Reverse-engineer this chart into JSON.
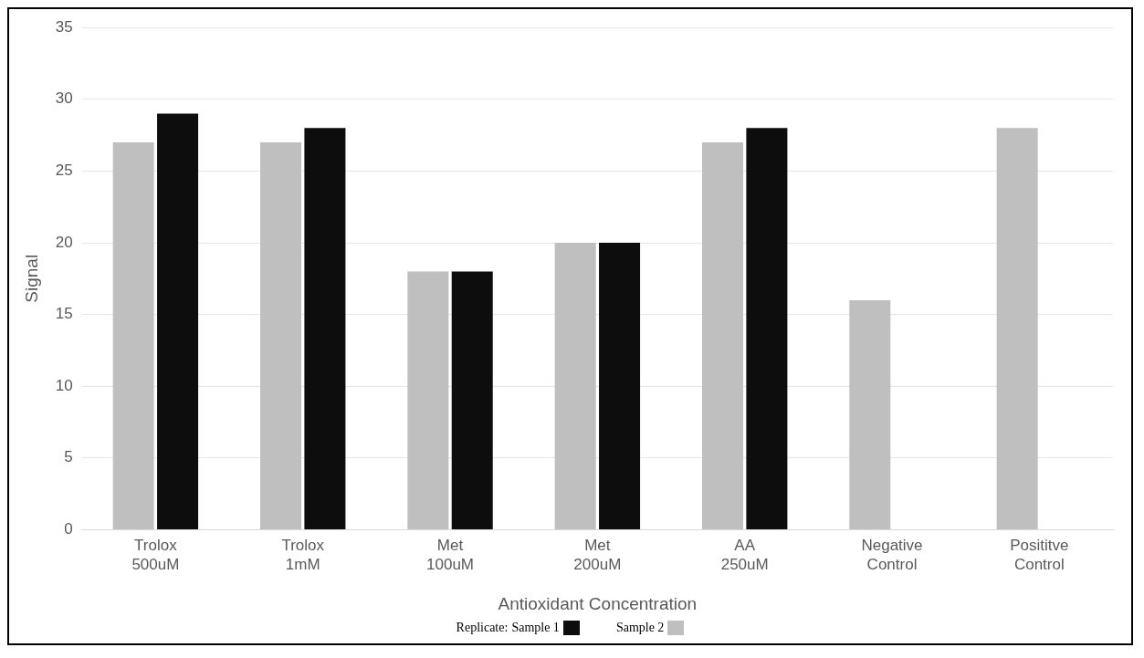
{
  "chart_data": {
    "type": "bar",
    "xlabel": "Antioxidant Concentration",
    "ylabel": "Signal",
    "legend_title": "Replicate:",
    "categories": [
      "Trolox 500uM",
      "Trolox 1mM",
      "Met 100uM",
      "Met 200uM",
      "AA 250uM",
      "Negative Control",
      "Posititve Control"
    ],
    "series": [
      {
        "name": "Sample 2",
        "color": "#bfbfbf",
        "values": [
          27,
          27,
          18,
          20,
          27,
          16,
          28
        ]
      },
      {
        "name": "Sample 1",
        "color": "#0d0d0d",
        "values": [
          29,
          28,
          18,
          20,
          28,
          null,
          null
        ]
      }
    ],
    "ylim": [
      0,
      35
    ],
    "yticks": [
      0,
      5,
      10,
      15,
      20,
      25,
      30,
      35
    ],
    "grid": "y",
    "legend": "bottom"
  }
}
